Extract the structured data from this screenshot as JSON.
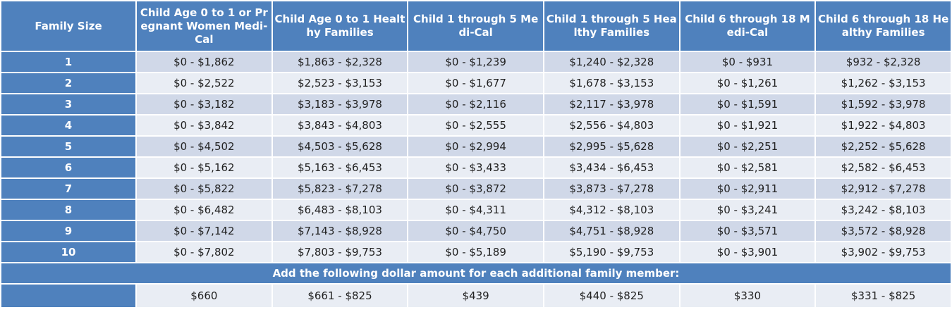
{
  "table": {
    "headers": [
      "Family Size",
      "Child Age 0 to 1 or Pregnant Women Medi-Cal",
      "Child Age 0 to 1 Healthy Families",
      "Child 1 through 5 Medi-Cal",
      "Child 1 through 5 Healthy Families",
      "Child 6 through 18 Medi-Cal",
      "Child 6 through 18 Healthy Families"
    ],
    "rows": [
      {
        "size": "1",
        "values": [
          "$0 - $1,862",
          "$1,863 - $2,328",
          "$0 - $1,239",
          "$1,240 - $2,328",
          "$0 - $931",
          "$932 - $2,328"
        ]
      },
      {
        "size": "2",
        "values": [
          "$0 - $2,522",
          "$2,523 - $3,153",
          "$0 - $1,677",
          "$1,678 - $3,153",
          "$0 - $1,261",
          "$1,262 - $3,153"
        ]
      },
      {
        "size": "3",
        "values": [
          "$0 - $3,182",
          "$3,183 - $3,978",
          "$0 - $2,116",
          "$2,117 - $3,978",
          "$0 - $1,591",
          "$1,592 - $3,978"
        ]
      },
      {
        "size": "4",
        "values": [
          "$0 - $3,842",
          "$3,843 - $4,803",
          "$0 - $2,555",
          "$2,556 - $4,803",
          "$0 - $1,921",
          "$1,922 - $4,803"
        ]
      },
      {
        "size": "5",
        "values": [
          "$0 - $4,502",
          "$4,503 - $5,628",
          "$0 - $2,994",
          "$2,995 - $5,628",
          "$0 - $2,251",
          "$2,252 - $5,628"
        ]
      },
      {
        "size": "6",
        "values": [
          "$0 - $5,162",
          "$5,163 - $6,453",
          "$0 - $3,433",
          "$3,434 - $6,453",
          "$0 - $2,581",
          "$2,582 - $6,453"
        ]
      },
      {
        "size": "7",
        "values": [
          "$0 - $5,822",
          "$5,823 - $7,278",
          "$0 - $3,872",
          "$3,873 - $7,278",
          "$0 - $2,911",
          "$2,912 - $7,278"
        ]
      },
      {
        "size": "8",
        "values": [
          "$0 - $6,482",
          "$6,483 - $8,103",
          "$0 - $4,311",
          "$4,312 - $8,103",
          "$0 - $3,241",
          "$3,242 - $8,103"
        ]
      },
      {
        "size": "9",
        "values": [
          "$0 - $7,142",
          "$7,143 - $8,928",
          "$0 - $4,750",
          "$4,751 - $8,928",
          "$0 - $3,571",
          "$3,572 - $8,928"
        ]
      },
      {
        "size": "10",
        "values": [
          "$0 - $7,802",
          "$7,803 - $9,753",
          "$0 - $5,189",
          "$5,190 - $9,753",
          "$0 - $3,901",
          "$3,902 - $9,753"
        ]
      }
    ],
    "additional_label": "Add the following dollar amount for each additional family member:",
    "additional_values": [
      "$660",
      "$661 - $825",
      "$439",
      "$440 - $825",
      "$330",
      "$331 - $825"
    ]
  },
  "colors": {
    "header_blue": "#4f81bd",
    "row_band_dark": "#d0d8e8",
    "row_band_light": "#e9edf4"
  }
}
